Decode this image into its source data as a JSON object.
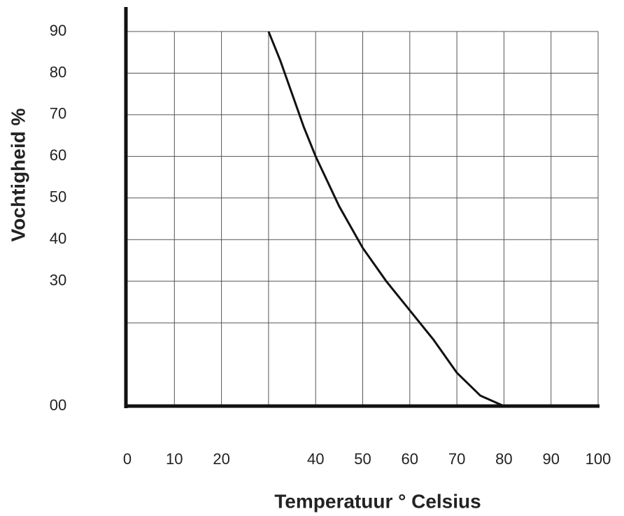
{
  "chart_data": {
    "type": "line",
    "x_label": "Temperatuur ° Celsius",
    "y_label": "Vochtigheid %",
    "xlim": [
      0,
      100
    ],
    "ylim": [
      0,
      90
    ],
    "xticks": [
      0,
      10,
      20,
      40,
      50,
      60,
      70,
      80,
      90,
      100
    ],
    "yticks": [
      {
        "value": 0,
        "label": "00"
      },
      30,
      40,
      50,
      60,
      70,
      80,
      90
    ],
    "xgrid": [
      10,
      20,
      30,
      40,
      50,
      60,
      70,
      80,
      90,
      100
    ],
    "ygrid": [
      20,
      30,
      40,
      50,
      60,
      70,
      80,
      90
    ],
    "grid": true,
    "series": [
      {
        "color": "#111111",
        "x": [
          30,
          32.5,
          35,
          37.5,
          40,
          42.5,
          45,
          47.5,
          50,
          55,
          60,
          65,
          70,
          75,
          80
        ],
        "values": [
          90,
          83,
          75,
          67,
          60,
          54,
          48,
          43,
          38,
          30,
          23,
          16,
          8,
          2.5,
          0
        ]
      }
    ]
  }
}
